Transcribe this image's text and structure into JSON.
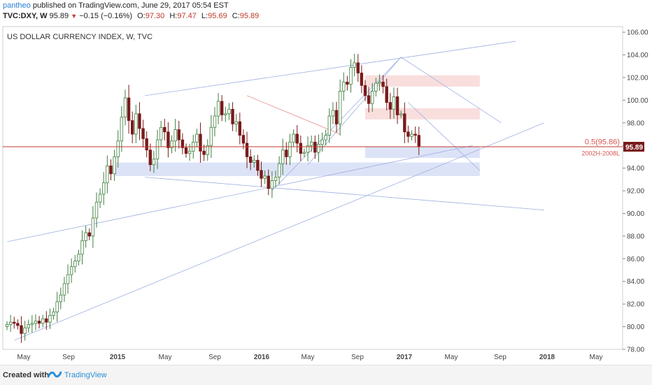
{
  "header": {
    "author": "pantheo",
    "published": "published on TradingView.com, June 29, 2017 05:54 EST"
  },
  "quote": {
    "symbol": "TVC:DXY, W",
    "last": "95.89",
    "change": "−0.15 (−0.16%)",
    "o_label": "O:",
    "o": "97.30",
    "h_label": "H:",
    "h": "97.47",
    "l_label": "L:",
    "l": "95.69",
    "c_label": "C:",
    "c": "95.89"
  },
  "footer": {
    "created_with": "Created with",
    "brand": "TradingView"
  },
  "colors": {
    "up": "#3f7f3f",
    "down": "#7a1b1b",
    "price_line": "#c0392b",
    "support_zone": "#dde3f7",
    "resistance_zone": "#f9dede",
    "trendline": "#9db0e0",
    "fib_line": "#e58c8c"
  },
  "chart_data": {
    "type": "candlestick",
    "title": "US DOLLAR CURRENCY INDEX, W, TVC",
    "ylim": [
      78,
      106.5
    ],
    "yticks": [
      "106.00",
      "104.00",
      "102.00",
      "100.00",
      "98.00",
      "96.00",
      "94.00",
      "92.00",
      "90.00",
      "88.00",
      "86.00",
      "84.00",
      "82.00",
      "80.00",
      "78.00"
    ],
    "xticks": [
      "May",
      "Sep",
      "2015",
      "May",
      "Sep",
      "2016",
      "May",
      "Sep",
      "2017",
      "May",
      "Sep",
      "2018",
      "May"
    ],
    "last_price_label": "95.89",
    "last_price": 95.89,
    "fib_label": "0.5(95.86)",
    "fib_value": 95.86,
    "zone_label": "2002H-2008L",
    "zones": [
      {
        "kind": "resistance",
        "from_week": 100,
        "to_week": 132,
        "low": 101.2,
        "high": 102.2
      },
      {
        "kind": "resistance",
        "from_week": 100,
        "to_week": 132,
        "low": 98.3,
        "high": 99.3
      },
      {
        "kind": "support",
        "from_week": 100,
        "to_week": 132,
        "low": 94.9,
        "high": 95.9
      },
      {
        "kind": "support",
        "from_week": 30,
        "to_week": 132,
        "low": 93.3,
        "high": 94.5
      }
    ],
    "anchor": [
      80.2,
      80.4,
      80.3,
      80.1,
      79.4,
      79.9,
      80.2,
      80.3,
      80.5,
      80.3,
      80.7,
      80.4,
      81.0,
      81.3,
      82.2,
      82.8,
      83.8,
      84.6,
      85.3,
      85.8,
      86.4,
      87.6,
      88.3,
      88.0,
      89.6,
      91.0,
      91.7,
      92.7,
      94.2,
      93.5,
      95.0,
      96.4,
      98.5,
      100.2,
      98.2,
      97.0,
      98.8,
      97.5,
      96.6,
      95.6,
      94.3,
      94.8,
      96.5,
      97.6,
      97.2,
      95.8,
      96.4,
      97.4,
      96.5,
      95.8,
      95.3,
      95.5,
      96.3,
      97.0,
      95.5,
      95.2,
      96.0,
      97.6,
      98.6,
      99.9,
      98.7,
      98.8,
      99.2,
      97.9,
      98.1,
      96.9,
      96.2,
      95.0,
      94.5,
      94.7,
      93.8,
      93.1,
      93.3,
      92.2,
      92.9,
      93.2,
      94.4,
      95.6,
      95.0,
      96.3,
      97.0,
      96.2,
      95.3,
      95.4,
      96.0,
      96.3,
      95.4,
      96.1,
      96.5,
      96.9,
      98.6,
      99.1,
      97.9,
      100.8,
      101.6,
      101.4,
      102.9,
      103.3,
      102.4,
      101.3,
      100.4,
      99.7,
      100.8,
      101.5,
      101.6,
      101.2,
      99.8,
      99.2,
      100.3,
      98.7,
      98.8,
      97.2,
      96.8,
      97.0,
      96.9,
      95.9
    ],
    "candles": []
  }
}
